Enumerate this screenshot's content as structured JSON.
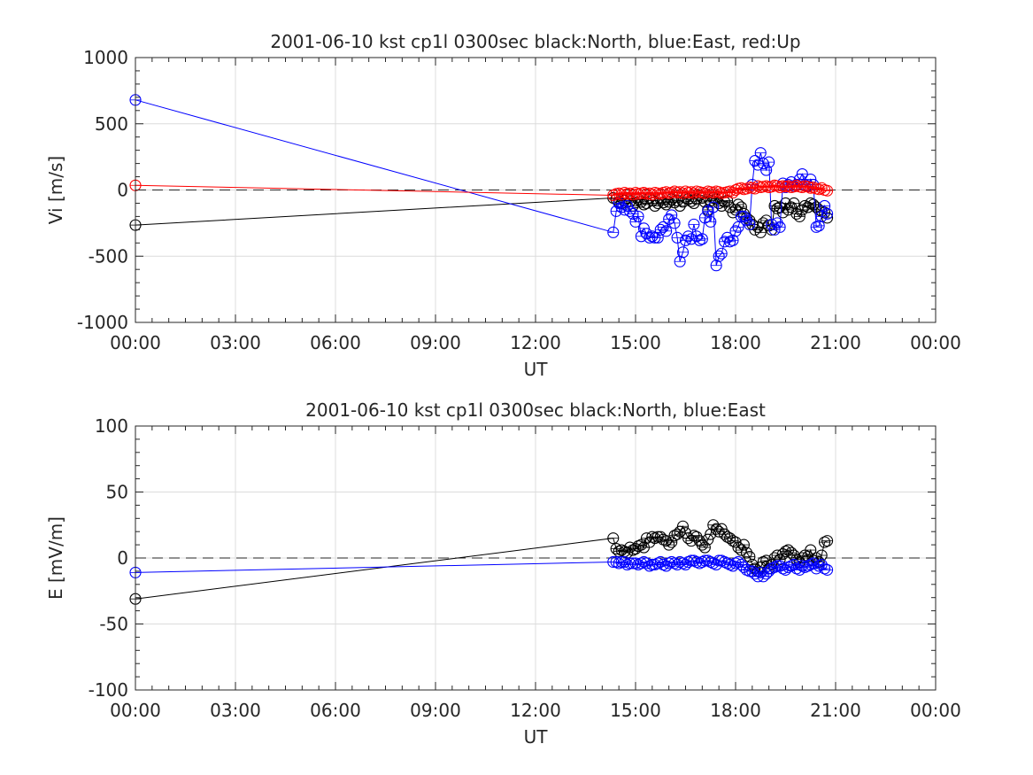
{
  "chart_data": [
    {
      "type": "line",
      "title": "2001-06-10 kst cp1l 0300sec black:North, blue:East, red:Up",
      "xlabel": "UT",
      "ylabel": "Vi [m/s]",
      "xlim": [
        0,
        24
      ],
      "ylim": [
        -1000,
        1000
      ],
      "xticks": [
        0,
        3,
        6,
        9,
        12,
        15,
        18,
        21,
        24
      ],
      "xtick_labels": [
        "00:00",
        "03:00",
        "06:00",
        "09:00",
        "12:00",
        "15:00",
        "18:00",
        "21:00",
        "00:00"
      ],
      "yticks": [
        -1000,
        -500,
        0,
        500,
        1000
      ],
      "ytick_labels": [
        "-1000",
        "-500",
        "0",
        "500",
        "1000"
      ],
      "grid": true,
      "zero_line": true,
      "series": [
        {
          "color": "#000000",
          "x": [
            0.0,
            14.33,
            14.42,
            14.5,
            14.58,
            14.67,
            14.75,
            14.83,
            14.92,
            15.0,
            15.08,
            15.17,
            15.25,
            15.33,
            15.42,
            15.5,
            15.58,
            15.67,
            15.75,
            15.83,
            15.92,
            16.0,
            16.08,
            16.17,
            16.25,
            16.33,
            16.42,
            16.5,
            16.58,
            16.67,
            16.75,
            16.83,
            16.92,
            17.0,
            17.08,
            17.17,
            17.25,
            17.33,
            17.42,
            17.5,
            17.58,
            17.67,
            17.75,
            17.83,
            17.92,
            18.0,
            18.08,
            18.17,
            18.25,
            18.33,
            18.42,
            18.5,
            18.58,
            18.67,
            18.75,
            18.83,
            18.92,
            19.0,
            19.08,
            19.17,
            19.25,
            19.33,
            19.42,
            19.5,
            19.58,
            19.67,
            19.75,
            19.83,
            19.92,
            20.0,
            20.08,
            20.17,
            20.25,
            20.33,
            20.42,
            20.5,
            20.58,
            20.67,
            20.75
          ],
          "y": [
            -265,
            -60,
            -70,
            -90,
            -100,
            -80,
            -60,
            -85,
            -120,
            -95,
            -70,
            -90,
            -110,
            -100,
            -60,
            -80,
            -120,
            -100,
            -70,
            -95,
            -110,
            -90,
            -70,
            -95,
            -80,
            -120,
            -90,
            -60,
            -70,
            -85,
            -100,
            -70,
            -40,
            -60,
            -90,
            -150,
            -80,
            -60,
            -70,
            -100,
            -120,
            -90,
            -80,
            -130,
            -170,
            -150,
            -110,
            -130,
            -180,
            -210,
            -230,
            -260,
            -300,
            -280,
            -320,
            -250,
            -230,
            -270,
            -300,
            -120,
            -140,
            -130,
            -170,
            -100,
            -150,
            -130,
            -100,
            -180,
            -200,
            -150,
            -120,
            -130,
            -100,
            -110,
            -130,
            -150,
            -160,
            -170,
            -210
          ]
        },
        {
          "color": "#0000ff",
          "x": [
            0.0,
            14.33,
            14.42,
            14.5,
            14.58,
            14.67,
            14.75,
            14.83,
            14.92,
            15.0,
            15.08,
            15.17,
            15.25,
            15.33,
            15.42,
            15.5,
            15.58,
            15.67,
            15.75,
            15.83,
            15.92,
            16.0,
            16.08,
            16.17,
            16.25,
            16.33,
            16.42,
            16.5,
            16.58,
            16.67,
            16.75,
            16.83,
            16.92,
            17.0,
            17.08,
            17.17,
            17.25,
            17.33,
            17.42,
            17.5,
            17.58,
            17.67,
            17.75,
            17.83,
            17.92,
            18.0,
            18.08,
            18.17,
            18.25,
            18.33,
            18.42,
            18.5,
            18.58,
            18.67,
            18.75,
            18.83,
            18.92,
            19.0,
            19.08,
            19.17,
            19.25,
            19.33,
            19.42,
            19.5,
            19.58,
            19.67,
            19.75,
            19.83,
            19.92,
            20.0,
            20.08,
            20.17,
            20.25,
            20.33,
            20.42,
            20.5,
            20.58,
            20.67,
            20.75
          ],
          "y": [
            680,
            -320,
            -160,
            -100,
            -130,
            -150,
            -120,
            -160,
            -180,
            -240,
            -200,
            -350,
            -290,
            -330,
            -360,
            -350,
            -360,
            -360,
            -300,
            -280,
            -310,
            -220,
            -190,
            -250,
            -360,
            -540,
            -470,
            -380,
            -350,
            -370,
            -260,
            -350,
            -380,
            -370,
            -210,
            -160,
            -240,
            -130,
            -570,
            -500,
            -480,
            -390,
            -360,
            -390,
            -380,
            -310,
            -280,
            -200,
            -200,
            -230,
            -260,
            40,
            220,
            190,
            280,
            200,
            150,
            210,
            -260,
            -300,
            -250,
            -280,
            50,
            20,
            40,
            60,
            30,
            40,
            80,
            120,
            40,
            30,
            80,
            40,
            -280,
            -270,
            -200,
            -120,
            -180
          ]
        },
        {
          "color": "#ff0000",
          "x": [
            0.0,
            14.33,
            14.42,
            14.5,
            14.58,
            14.67,
            14.75,
            14.83,
            14.92,
            15.0,
            15.08,
            15.17,
            15.25,
            15.33,
            15.42,
            15.5,
            15.58,
            15.67,
            15.75,
            15.83,
            15.92,
            16.0,
            16.08,
            16.17,
            16.25,
            16.33,
            16.42,
            16.5,
            16.58,
            16.67,
            16.75,
            16.83,
            16.92,
            17.0,
            17.08,
            17.17,
            17.25,
            17.33,
            17.42,
            17.5,
            17.58,
            17.67,
            17.75,
            17.83,
            17.92,
            18.0,
            18.08,
            18.17,
            18.25,
            18.33,
            18.42,
            18.5,
            18.58,
            18.67,
            18.75,
            18.83,
            18.92,
            19.0,
            19.08,
            19.17,
            19.25,
            19.33,
            19.42,
            19.5,
            19.58,
            19.67,
            19.75,
            19.83,
            19.92,
            20.0,
            20.08,
            20.17,
            20.25,
            20.33,
            20.42,
            20.5,
            20.58,
            20.67,
            20.75
          ],
          "y": [
            35,
            -40,
            -30,
            -25,
            -35,
            -20,
            -30,
            -25,
            -35,
            -20,
            -30,
            -25,
            -20,
            -30,
            -25,
            -35,
            -20,
            -25,
            -30,
            -20,
            -15,
            -25,
            -20,
            -10,
            -20,
            -15,
            -25,
            -10,
            -20,
            -15,
            -25,
            -10,
            -15,
            -20,
            -25,
            -10,
            -15,
            -20,
            -10,
            -15,
            -25,
            -20,
            -15,
            -10,
            -20,
            0,
            10,
            15,
            5,
            10,
            20,
            15,
            10,
            30,
            20,
            25,
            30,
            20,
            25,
            35,
            30,
            20,
            30,
            25,
            30,
            20,
            25,
            35,
            25,
            20,
            30,
            25,
            15,
            20,
            10,
            5,
            15,
            0,
            -5
          ]
        }
      ]
    },
    {
      "type": "line",
      "title": "2001-06-10 kst cp1l 0300sec black:North, blue:East",
      "xlabel": "UT",
      "ylabel": "E [mV/m]",
      "xlim": [
        0,
        24
      ],
      "ylim": [
        -100,
        100
      ],
      "xticks": [
        0,
        3,
        6,
        9,
        12,
        15,
        18,
        21,
        24
      ],
      "xtick_labels": [
        "00:00",
        "03:00",
        "06:00",
        "09:00",
        "12:00",
        "15:00",
        "18:00",
        "21:00",
        "00:00"
      ],
      "yticks": [
        -100,
        -50,
        0,
        50,
        100
      ],
      "ytick_labels": [
        "-100",
        "-50",
        "0",
        "50",
        "100"
      ],
      "grid": true,
      "zero_line": true,
      "series": [
        {
          "color": "#000000",
          "x": [
            0.0,
            14.33,
            14.42,
            14.5,
            14.58,
            14.67,
            14.75,
            14.83,
            14.92,
            15.0,
            15.08,
            15.17,
            15.25,
            15.33,
            15.42,
            15.5,
            15.58,
            15.67,
            15.75,
            15.83,
            15.92,
            16.0,
            16.08,
            16.17,
            16.25,
            16.33,
            16.42,
            16.5,
            16.58,
            16.67,
            16.75,
            16.83,
            16.92,
            17.0,
            17.08,
            17.17,
            17.25,
            17.33,
            17.42,
            17.5,
            17.58,
            17.67,
            17.75,
            17.83,
            17.92,
            18.0,
            18.08,
            18.17,
            18.25,
            18.33,
            18.42,
            18.5,
            18.58,
            18.67,
            18.75,
            18.83,
            18.92,
            19.0,
            19.08,
            19.17,
            19.25,
            19.33,
            19.42,
            19.5,
            19.58,
            19.67,
            19.75,
            19.83,
            19.92,
            20.0,
            20.08,
            20.17,
            20.25,
            20.33,
            20.42,
            20.5,
            20.58,
            20.67,
            20.75
          ],
          "y": [
            -31,
            15,
            7,
            5,
            6,
            5,
            4,
            8,
            6,
            7,
            9,
            10,
            8,
            15,
            12,
            16,
            15,
            16,
            16,
            14,
            13,
            10,
            12,
            17,
            18,
            20,
            24,
            19,
            15,
            13,
            17,
            16,
            13,
            10,
            8,
            14,
            18,
            25,
            22,
            20,
            22,
            18,
            16,
            15,
            13,
            12,
            8,
            6,
            10,
            4,
            1,
            -5,
            -8,
            -10,
            -7,
            -3,
            -2,
            -8,
            -5,
            0,
            2,
            -1,
            3,
            5,
            6,
            4,
            2,
            -1,
            -3,
            0,
            2,
            1,
            6,
            -2,
            0,
            -3,
            2,
            12,
            13
          ]
        },
        {
          "color": "#0000ff",
          "x": [
            0.0,
            14.33,
            14.42,
            14.5,
            14.58,
            14.67,
            14.75,
            14.83,
            14.92,
            15.0,
            15.08,
            15.17,
            15.25,
            15.33,
            15.42,
            15.5,
            15.58,
            15.67,
            15.75,
            15.83,
            15.92,
            16.0,
            16.08,
            16.17,
            16.25,
            16.33,
            16.42,
            16.5,
            16.58,
            16.67,
            16.75,
            16.83,
            16.92,
            17.0,
            17.08,
            17.17,
            17.25,
            17.33,
            17.42,
            17.5,
            17.58,
            17.67,
            17.75,
            17.83,
            17.92,
            18.0,
            18.08,
            18.17,
            18.25,
            18.33,
            18.42,
            18.5,
            18.58,
            18.67,
            18.75,
            18.83,
            18.92,
            19.0,
            19.08,
            19.17,
            19.25,
            19.33,
            19.42,
            19.5,
            19.58,
            19.67,
            19.75,
            19.83,
            19.92,
            20.0,
            20.08,
            20.17,
            20.25,
            20.33,
            20.42,
            20.5,
            20.58,
            20.67,
            20.75
          ],
          "y": [
            -11,
            -3,
            -3,
            -4,
            -3,
            -3,
            -5,
            -4,
            -4,
            -4,
            -5,
            -4,
            -3,
            -4,
            -6,
            -5,
            -5,
            -4,
            -3,
            -5,
            -6,
            -4,
            -3,
            -4,
            -5,
            -3,
            -4,
            -5,
            -3,
            -2,
            -2,
            -3,
            -4,
            -3,
            -2,
            -2,
            -3,
            -4,
            -5,
            -2,
            -2,
            -3,
            -4,
            -5,
            -6,
            -4,
            -3,
            -5,
            -7,
            -9,
            -10,
            -10,
            -12,
            -14,
            -11,
            -14,
            -12,
            -10,
            -8,
            -7,
            -6,
            -6,
            -8,
            -9,
            -7,
            -6,
            -5,
            -8,
            -9,
            -6,
            -7,
            -6,
            -5,
            -4,
            -8,
            -6,
            -5,
            -8,
            -9
          ]
        }
      ]
    }
  ]
}
